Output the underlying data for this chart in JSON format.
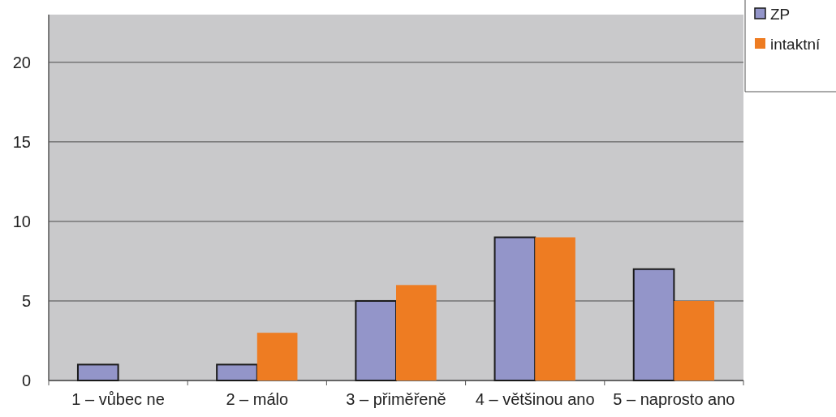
{
  "chart_data": {
    "type": "bar",
    "categories": [
      "1 – vůbec ne",
      "2 – málo",
      "3 – přiměřeně",
      "4 – většinou ano",
      "5 – naprosto ano"
    ],
    "series": [
      {
        "name": "ZP",
        "color": "#9395c9",
        "values": [
          1,
          1,
          5,
          9,
          7
        ]
      },
      {
        "name": "intaktní",
        "color": "#ee7c22",
        "values": [
          0,
          3,
          6,
          9,
          5
        ]
      }
    ],
    "ylim": [
      0,
      23
    ],
    "yticks": [
      0,
      5,
      10,
      15,
      20
    ],
    "grid": "y",
    "legend": "top right"
  }
}
